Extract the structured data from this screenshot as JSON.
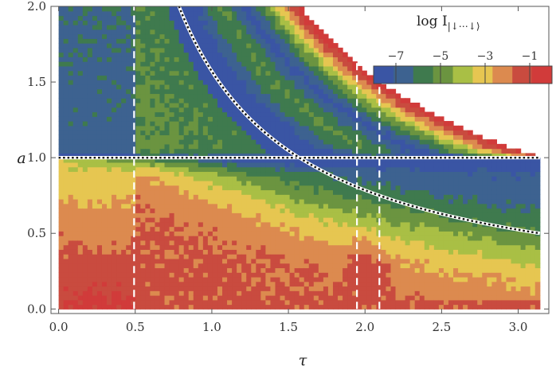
{
  "chart_data": {
    "type": "heatmap",
    "title": "",
    "xlabel": "τ",
    "ylabel": "a",
    "xlim": [
      -0.05,
      3.2
    ],
    "ylim": [
      -0.03,
      2.0
    ],
    "xticks": [
      0.0,
      0.5,
      1.0,
      1.5,
      2.0,
      2.5,
      3.0
    ],
    "xtick_labels": [
      "0.0",
      "0.5",
      "1.0",
      "1.5",
      "2.0",
      "2.5",
      "3.0"
    ],
    "yticks": [
      0.0,
      0.5,
      1.0,
      1.5,
      2.0
    ],
    "ytick_labels": [
      "0.0",
      "0.5",
      "1.0",
      "1.5",
      "2.0"
    ],
    "grid": false,
    "colorbar": {
      "title": "log I",
      "title_subscript": "|↓⋯↓⟩",
      "placement": "top-right",
      "ticks": [
        -7,
        -5,
        -3,
        -1
      ],
      "tick_labels": [
        "−7",
        "−5",
        "−3",
        "−1"
      ],
      "range": [
        -8,
        0
      ],
      "levels": 9,
      "colors": [
        "#3a55a4",
        "#3d6290",
        "#3f7a4e",
        "#6b9440",
        "#a9bf45",
        "#e6c651",
        "#dc8a4f",
        "#c94b3f",
        "#d13b3a"
      ]
    },
    "field": "heatmap of log I over (τ, a); region a·τ > π not shown",
    "vertical_lines": [
      {
        "x": 0.4925,
        "style": "white-dashed"
      },
      {
        "x": 1.9475,
        "style": "white-dashed"
      },
      {
        "x": 2.094,
        "style": "white-dashed"
      }
    ],
    "curves": [
      {
        "type": "hline",
        "y": 1.0,
        "x_range": [
          0.0,
          3.1416
        ],
        "style": "black-white-dotted"
      },
      {
        "type": "function",
        "expr": "a = π/(2τ)",
        "x_range": [
          0.785,
          3.1416
        ],
        "style": "black-white-dotted"
      }
    ]
  }
}
